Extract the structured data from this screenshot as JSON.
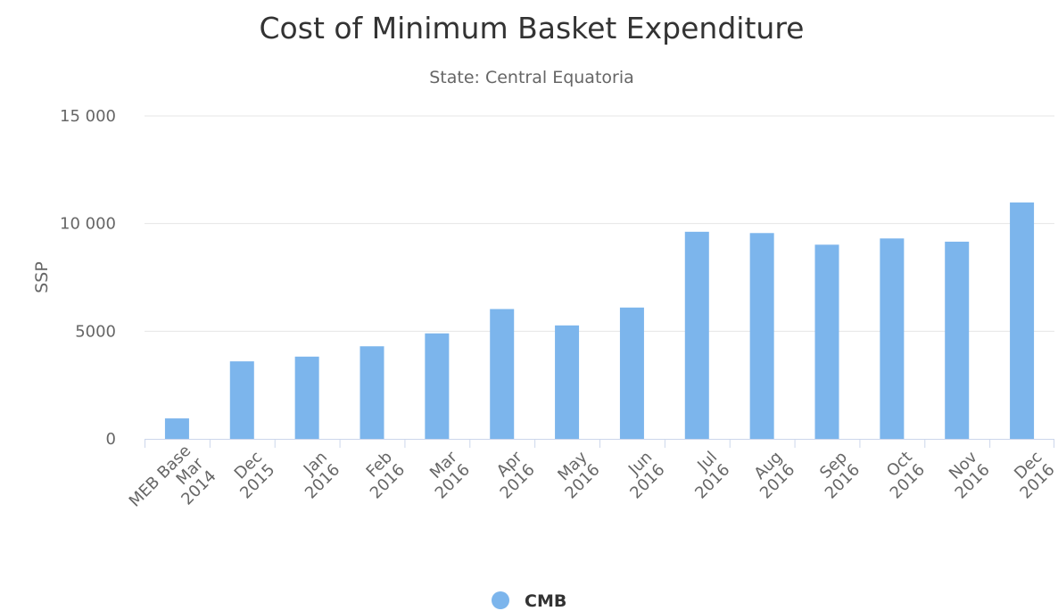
{
  "chart_data": {
    "type": "bar",
    "title": "Cost of Minimum Basket Expenditure",
    "subtitle": "State: Central Equatoria",
    "xlabel": "",
    "ylabel": "SSP",
    "ylim": [
      0,
      15000
    ],
    "yticks": [
      0,
      5000,
      10000,
      15000
    ],
    "ytick_labels": [
      "0",
      "5000",
      "10 000",
      "15 000"
    ],
    "grid": true,
    "legend_position": "bottom-center",
    "categories": [
      [
        "MEB Base",
        "Mar",
        "2014"
      ],
      [
        "Dec",
        "2015"
      ],
      [
        "Jan",
        "2016"
      ],
      [
        "Feb",
        "2016"
      ],
      [
        "Mar",
        "2016"
      ],
      [
        "Apr",
        "2016"
      ],
      [
        "May",
        "2016"
      ],
      [
        "Jun",
        "2016"
      ],
      [
        "Jul",
        "2016"
      ],
      [
        "Aug",
        "2016"
      ],
      [
        "Sep",
        "2016"
      ],
      [
        "Oct",
        "2016"
      ],
      [
        "Nov",
        "2016"
      ],
      [
        "Dec",
        "2016"
      ]
    ],
    "series": [
      {
        "name": "CMB",
        "color": "#7cb5ec",
        "values": [
          950,
          3600,
          3820,
          4300,
          4900,
          6030,
          5270,
          6100,
          9620,
          9560,
          9020,
          9310,
          9160,
          10980
        ]
      }
    ]
  }
}
